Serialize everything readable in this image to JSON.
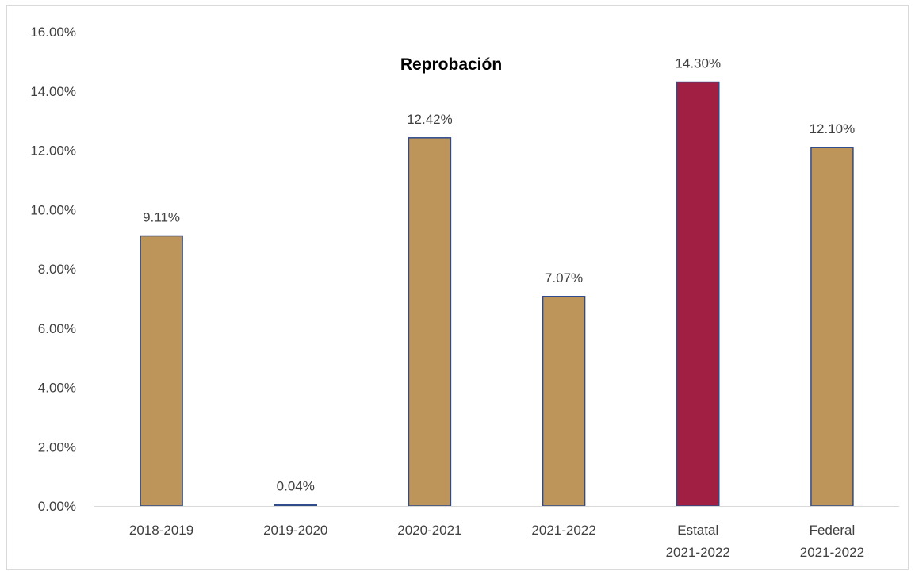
{
  "chart_data": {
    "type": "bar",
    "title": "Reprobación",
    "xlabel": "",
    "ylabel": "",
    "ylim": [
      0,
      16
    ],
    "y_ticks": [
      "0.00%",
      "2.00%",
      "4.00%",
      "6.00%",
      "8.00%",
      "10.00%",
      "12.00%",
      "14.00%",
      "16.00%"
    ],
    "categories": [
      [
        "2018-2019"
      ],
      [
        "2019-2020"
      ],
      [
        "2020-2021"
      ],
      [
        "2021-2022"
      ],
      [
        "Estatal",
        "2021-2022"
      ],
      [
        "Federal",
        "2021-2022"
      ]
    ],
    "values": [
      9.11,
      0.04,
      12.42,
      7.07,
      14.3,
      12.1
    ],
    "data_labels": [
      "9.11%",
      "0.04%",
      "12.42%",
      "7.07%",
      "14.30%",
      "12.10%"
    ],
    "bar_colors": [
      "#bd955a",
      "#bd955a",
      "#bd955a",
      "#bd955a",
      "#a01f43",
      "#bd955a"
    ],
    "bar_outline_color": "#2f4b8a",
    "grid": false,
    "legend": "none"
  }
}
